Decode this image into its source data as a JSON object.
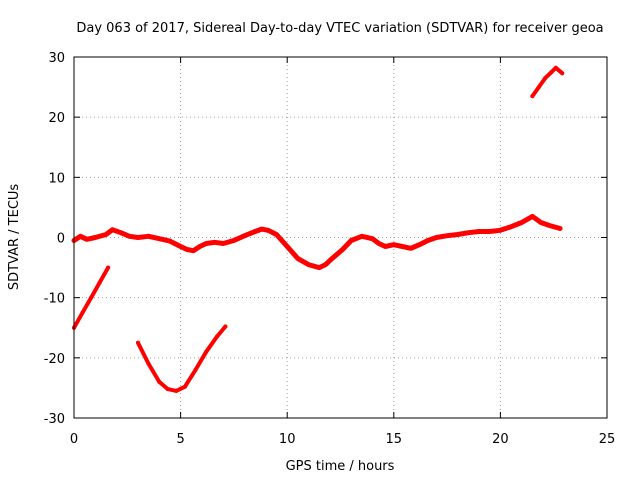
{
  "chart_data": {
    "type": "line",
    "title": "Day 063 of 2017, Sidereal Day-to-day VTEC variation (SDTVAR) for receiver geoa",
    "xlabel": "GPS time / hours",
    "ylabel": "SDTVAR / TECUs",
    "xlim": [
      0,
      25
    ],
    "ylim": [
      -30,
      30
    ],
    "xticks": [
      0,
      5,
      10,
      15,
      20,
      25
    ],
    "yticks": [
      -30,
      -20,
      -10,
      0,
      10,
      20,
      30
    ],
    "xtick_labels": [
      "0",
      "5",
      "10",
      "15",
      "20",
      "25"
    ],
    "ytick_labels": [
      "-30",
      "-20",
      "-10",
      "0",
      "10",
      "20",
      "30"
    ],
    "grid": true,
    "legend": "none",
    "color": "#ff0000",
    "series": [
      {
        "name": "main-band",
        "x": [
          0,
          0.3,
          0.6,
          1,
          1.5,
          1.8,
          2.2,
          2.6,
          3,
          3.5,
          4,
          4.5,
          5,
          5.3,
          5.6,
          5.9,
          6.2,
          6.6,
          7,
          7.5,
          8,
          8.5,
          8.8,
          9.1,
          9.5,
          10,
          10.5,
          11,
          11.5,
          11.8,
          12.1,
          12.6,
          13,
          13.5,
          14,
          14.3,
          14.6,
          15,
          15.4,
          15.8,
          16.2,
          16.6,
          17,
          17.5,
          18,
          18.5,
          19,
          19.5,
          20,
          20.5,
          21,
          21.5,
          21.9,
          22.3,
          22.8
        ],
        "y": [
          -0.5,
          0.2,
          -0.3,
          0,
          0.5,
          1.3,
          0.8,
          0.2,
          0,
          0.2,
          -0.2,
          -0.6,
          -1.5,
          -2,
          -2.2,
          -1.5,
          -1,
          -0.8,
          -1,
          -0.5,
          0.3,
          1,
          1.4,
          1.2,
          0.5,
          -1.5,
          -3.5,
          -4.5,
          -5,
          -4.5,
          -3.5,
          -2,
          -0.5,
          0.2,
          -0.2,
          -1,
          -1.5,
          -1.2,
          -1.5,
          -1.8,
          -1.2,
          -0.5,
          0,
          0.3,
          0.5,
          0.8,
          1,
          1,
          1.2,
          1.8,
          2.5,
          3.5,
          2.5,
          2,
          1.5
        ]
      },
      {
        "name": "segment-early-rise",
        "x": [
          0,
          0.4,
          0.8,
          1.2,
          1.6
        ],
        "y": [
          -15,
          -12.5,
          -10,
          -7.5,
          -5
        ]
      },
      {
        "name": "segment-dip",
        "x": [
          3,
          3.5,
          4,
          4.4,
          4.8,
          5.2,
          5.7,
          6.2,
          6.7,
          7.1
        ],
        "y": [
          -17.5,
          -21,
          -24,
          -25.2,
          -25.5,
          -24.8,
          -22,
          -19,
          -16.5,
          -14.8
        ]
      },
      {
        "name": "segment-late-rise",
        "x": [
          21.5,
          21.8,
          22.1,
          22.4,
          22.6,
          22.9
        ],
        "y": [
          23.5,
          25,
          26.5,
          27.5,
          28.2,
          27.3
        ]
      }
    ]
  }
}
